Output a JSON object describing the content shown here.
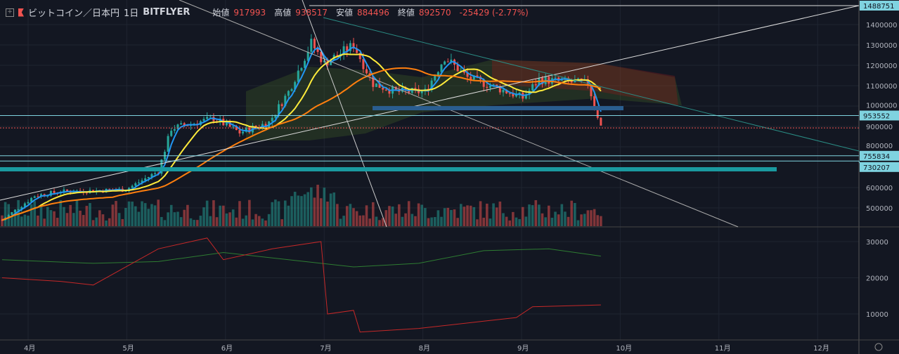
{
  "legend": {
    "symbol": "ビットコイン／日本円",
    "interval": "1日",
    "exchange": "BITFLYER",
    "open_label": "始値",
    "open": "917993",
    "high_label": "高値",
    "high": "938517",
    "low_label": "安値",
    "low": "884496",
    "close_label": "終値",
    "close": "892570",
    "change": "-25429 (-2.77%)"
  },
  "colors": {
    "bg": "#131722",
    "up": "#26a69a",
    "down": "#ef5350",
    "ma_fast": "#2196f3",
    "ma_mid": "#ffeb3b",
    "ma_slow": "#ff7f0e",
    "tag": "#7fd3e0"
  },
  "chart_data": [
    {
      "type": "candlestick",
      "title": "ビットコイン／日本円 1日 BITFLYER",
      "x_ticks": [
        "4月",
        "5月",
        "6月",
        "7月",
        "8月",
        "9月",
        "10月",
        "11月",
        "12月"
      ],
      "y_ticks": [
        "1400000",
        "1300000",
        "1200000",
        "1100000",
        "1000000",
        "900000",
        "800000",
        "600000",
        "500000"
      ],
      "ylim": [
        420000,
        1500000
      ],
      "price_keypoints_day_from_apr1": [
        [
          -8,
          440000
        ],
        [
          2,
          560000
        ],
        [
          10,
          580000
        ],
        [
          30,
          590000
        ],
        [
          40,
          680000
        ],
        [
          44,
          890000
        ],
        [
          57,
          940000
        ],
        [
          65,
          870000
        ],
        [
          74,
          920000
        ],
        [
          80,
          1070000
        ],
        [
          87,
          1310000
        ],
        [
          91,
          1210000
        ],
        [
          100,
          1300000
        ],
        [
          106,
          1110000
        ],
        [
          113,
          1070000
        ],
        [
          122,
          1070000
        ],
        [
          128,
          1240000
        ],
        [
          135,
          1140000
        ],
        [
          144,
          1090000
        ],
        [
          152,
          1040000
        ],
        [
          157,
          1130000
        ],
        [
          172,
          1110000
        ],
        [
          176,
          900000
        ]
      ],
      "price_tags": [
        "1488751",
        "953552",
        "755834",
        "730207"
      ],
      "last_close": 892570
    },
    {
      "type": "line",
      "y_ticks": [
        "30000",
        "20000",
        "10000"
      ],
      "ylim": [
        0,
        38000
      ],
      "series": [
        {
          "name": "green",
          "points": [
            [
              -8,
              25000
            ],
            [
              20,
              24000
            ],
            [
              40,
              24500
            ],
            [
              60,
              27000
            ],
            [
              80,
              25000
            ],
            [
              100,
              23000
            ],
            [
              120,
              24000
            ],
            [
              140,
              27500
            ],
            [
              160,
              28000
            ],
            [
              176,
              26000
            ]
          ]
        },
        {
          "name": "red",
          "points": [
            [
              -8,
              20000
            ],
            [
              10,
              19000
            ],
            [
              20,
              18000
            ],
            [
              40,
              28000
            ],
            [
              55,
              31000
            ],
            [
              60,
              25000
            ],
            [
              75,
              28000
            ],
            [
              90,
              30000
            ],
            [
              92,
              10000
            ],
            [
              100,
              11000
            ],
            [
              102,
              5000
            ],
            [
              120,
              6000
            ],
            [
              140,
              8000
            ],
            [
              150,
              9000
            ],
            [
              155,
              12000
            ],
            [
              176,
              12500
            ]
          ]
        }
      ]
    }
  ]
}
